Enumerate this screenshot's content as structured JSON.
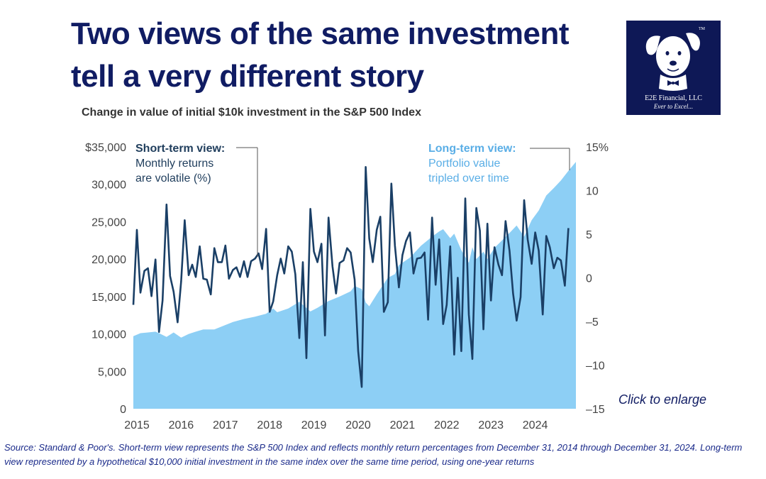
{
  "header": {
    "title_line1": "Two views of the same investment",
    "title_line2": "tell a very different story",
    "subtitle": "Change in value of initial $10k investment in the S&P 500 Index"
  },
  "logo": {
    "name": "E2E Financial, LLC",
    "tagline": "Ever to Excel...",
    "mark": "TM"
  },
  "annotations": {
    "short_term_title": "Short-term view:",
    "short_term_line1": "Monthly returns",
    "short_term_line2": "are volatile (%)",
    "long_term_title": "Long-term view:",
    "long_term_line1": "Portfolio value",
    "long_term_line2": "tripled over time"
  },
  "enlarge_link": "Click to enlarge",
  "source_note": "Source: Standard & Poor's. Short-term view represents the S&P 500 Index and reflects monthly return percentages from December 31, 2014 through December 31, 2024. Long-term view represented by a hypothetical $10,000 initial investment in the same index over the same time period, using one-year returns",
  "colors": {
    "title": "#101c63",
    "area_fill": "#8dcff5",
    "line": "#1a3f66",
    "short_term_label": "#1f3d5c",
    "long_term_label": "#5aaee6",
    "logo_bg": "#0e1856"
  },
  "chart_data": {
    "type": "area",
    "x_tick_labels": [
      "2015",
      "2016",
      "2017",
      "2018",
      "2019",
      "2020",
      "2021",
      "2022",
      "2023",
      "2024"
    ],
    "left_axis": {
      "ticks": [
        0,
        5000,
        10000,
        15000,
        20000,
        25000,
        30000,
        35000
      ],
      "tick_labels": [
        "0",
        "5,000",
        "10,000",
        "15,000",
        "20,000",
        "25,000",
        "30,000",
        "$35,000"
      ],
      "range": [
        0,
        35000
      ]
    },
    "right_axis": {
      "ticks": [
        15,
        10,
        5,
        0,
        -5,
        -10,
        -15
      ],
      "tick_labels": [
        "15%",
        "10",
        "5",
        "0",
        "–5",
        "–10",
        "–15"
      ],
      "range": [
        -15,
        15
      ]
    },
    "x_range": [
      2014.92,
      2024.92
    ],
    "series": [
      {
        "name": "Long-term view",
        "type": "area",
        "axis": "left",
        "points": [
          [
            2014.92,
            9700
          ],
          [
            2015.08,
            10100
          ],
          [
            2015.25,
            10200
          ],
          [
            2015.42,
            10300
          ],
          [
            2015.5,
            10100
          ],
          [
            2015.67,
            9600
          ],
          [
            2015.83,
            10200
          ],
          [
            2016.0,
            9500
          ],
          [
            2016.17,
            10000
          ],
          [
            2016.33,
            10300
          ],
          [
            2016.5,
            10600
          ],
          [
            2016.75,
            10600
          ],
          [
            2016.92,
            11000
          ],
          [
            2017.17,
            11600
          ],
          [
            2017.42,
            12000
          ],
          [
            2017.67,
            12300
          ],
          [
            2017.92,
            12700
          ],
          [
            2018.08,
            13400
          ],
          [
            2018.17,
            12900
          ],
          [
            2018.42,
            13400
          ],
          [
            2018.67,
            14300
          ],
          [
            2018.92,
            13000
          ],
          [
            2019.08,
            13500
          ],
          [
            2019.33,
            14400
          ],
          [
            2019.58,
            15000
          ],
          [
            2019.83,
            15700
          ],
          [
            2019.92,
            16400
          ],
          [
            2020.08,
            16000
          ],
          [
            2020.17,
            14200
          ],
          [
            2020.25,
            13700
          ],
          [
            2020.42,
            15300
          ],
          [
            2020.67,
            17500
          ],
          [
            2020.83,
            18000
          ],
          [
            2020.92,
            19200
          ],
          [
            2021.17,
            20200
          ],
          [
            2021.42,
            21800
          ],
          [
            2021.67,
            23000
          ],
          [
            2021.83,
            23700
          ],
          [
            2021.92,
            24000
          ],
          [
            2022.08,
            22800
          ],
          [
            2022.17,
            23400
          ],
          [
            2022.33,
            21200
          ],
          [
            2022.5,
            19500
          ],
          [
            2022.58,
            21600
          ],
          [
            2022.67,
            20000
          ],
          [
            2022.83,
            21000
          ],
          [
            2022.92,
            20000
          ],
          [
            2023.08,
            21500
          ],
          [
            2023.25,
            22500
          ],
          [
            2023.42,
            23500
          ],
          [
            2023.58,
            24500
          ],
          [
            2023.75,
            23000
          ],
          [
            2023.92,
            25200
          ],
          [
            2024.08,
            26500
          ],
          [
            2024.25,
            28500
          ],
          [
            2024.42,
            29500
          ],
          [
            2024.58,
            30500
          ],
          [
            2024.75,
            31800
          ],
          [
            2024.92,
            33000
          ]
        ]
      },
      {
        "name": "Short-term view",
        "type": "line",
        "axis": "right",
        "points": [
          [
            2014.92,
            -3.1
          ],
          [
            2015.0,
            5.5
          ],
          [
            2015.08,
            -1.7
          ],
          [
            2015.17,
            0.8
          ],
          [
            2015.25,
            1.1
          ],
          [
            2015.33,
            -2.1
          ],
          [
            2015.42,
            2.1
          ],
          [
            2015.5,
            -6.2
          ],
          [
            2015.58,
            -2.6
          ],
          [
            2015.67,
            8.4
          ],
          [
            2015.75,
            0.2
          ],
          [
            2015.83,
            -1.6
          ],
          [
            2015.92,
            -5.1
          ],
          [
            2016.0,
            -0.4
          ],
          [
            2016.08,
            6.6
          ],
          [
            2016.17,
            0.3
          ],
          [
            2016.25,
            1.5
          ],
          [
            2016.33,
            0.1
          ],
          [
            2016.42,
            3.6
          ],
          [
            2016.5,
            -0.1
          ],
          [
            2016.58,
            -0.2
          ],
          [
            2016.67,
            -1.9
          ],
          [
            2016.75,
            3.4
          ],
          [
            2016.83,
            1.8
          ],
          [
            2016.92,
            1.8
          ],
          [
            2017.0,
            3.7
          ],
          [
            2017.08,
            -0.1
          ],
          [
            2017.17,
            0.9
          ],
          [
            2017.25,
            1.2
          ],
          [
            2017.33,
            0.1
          ],
          [
            2017.42,
            1.9
          ],
          [
            2017.5,
            0.1
          ],
          [
            2017.58,
            1.9
          ],
          [
            2017.67,
            2.2
          ],
          [
            2017.75,
            2.8
          ],
          [
            2017.83,
            1.0
          ],
          [
            2017.92,
            5.6
          ],
          [
            2018.0,
            -3.9
          ],
          [
            2018.08,
            -2.7
          ],
          [
            2018.17,
            0.3
          ],
          [
            2018.25,
            2.2
          ],
          [
            2018.33,
            0.5
          ],
          [
            2018.42,
            3.6
          ],
          [
            2018.5,
            3.0
          ],
          [
            2018.58,
            0.4
          ],
          [
            2018.67,
            -6.9
          ],
          [
            2018.75,
            1.8
          ],
          [
            2018.83,
            -9.2
          ],
          [
            2018.92,
            7.9
          ],
          [
            2019.0,
            3.0
          ],
          [
            2019.08,
            1.8
          ],
          [
            2019.17,
            3.9
          ],
          [
            2019.25,
            -6.6
          ],
          [
            2019.33,
            6.9
          ],
          [
            2019.42,
            1.3
          ],
          [
            2019.5,
            -1.8
          ],
          [
            2019.58,
            1.7
          ],
          [
            2019.67,
            2.0
          ],
          [
            2019.75,
            3.4
          ],
          [
            2019.83,
            2.9
          ],
          [
            2019.92,
            -0.2
          ],
          [
            2020.0,
            -8.4
          ],
          [
            2020.08,
            -12.5
          ],
          [
            2020.17,
            12.7
          ],
          [
            2020.25,
            4.5
          ],
          [
            2020.33,
            1.8
          ],
          [
            2020.42,
            5.5
          ],
          [
            2020.5,
            7.0
          ],
          [
            2020.58,
            -3.9
          ],
          [
            2020.67,
            -2.8
          ],
          [
            2020.75,
            10.8
          ],
          [
            2020.83,
            3.7
          ],
          [
            2020.92,
            -1.1
          ],
          [
            2021.0,
            2.6
          ],
          [
            2021.08,
            4.2
          ],
          [
            2021.17,
            5.2
          ],
          [
            2021.25,
            0.5
          ],
          [
            2021.33,
            2.2
          ],
          [
            2021.42,
            2.3
          ],
          [
            2021.5,
            2.9
          ],
          [
            2021.58,
            -4.8
          ],
          [
            2021.67,
            6.9
          ],
          [
            2021.75,
            -0.8
          ],
          [
            2021.83,
            4.4
          ],
          [
            2021.92,
            -5.3
          ],
          [
            2022.0,
            -3.1
          ],
          [
            2022.08,
            3.6
          ],
          [
            2022.17,
            -8.8
          ],
          [
            2022.25,
            0.01
          ],
          [
            2022.33,
            -8.4
          ],
          [
            2022.42,
            9.1
          ],
          [
            2022.5,
            -4.2
          ],
          [
            2022.58,
            -9.3
          ],
          [
            2022.67,
            8.0
          ],
          [
            2022.75,
            5.4
          ],
          [
            2022.83,
            -5.9
          ],
          [
            2022.92,
            6.2
          ],
          [
            2023.0,
            -2.6
          ],
          [
            2023.08,
            3.5
          ],
          [
            2023.17,
            1.5
          ],
          [
            2023.25,
            0.3
          ],
          [
            2023.33,
            6.5
          ],
          [
            2023.42,
            3.1
          ],
          [
            2023.5,
            -1.8
          ],
          [
            2023.58,
            -4.9
          ],
          [
            2023.67,
            -2.2
          ],
          [
            2023.75,
            8.9
          ],
          [
            2023.83,
            4.4
          ],
          [
            2023.92,
            1.6
          ],
          [
            2024.0,
            5.2
          ],
          [
            2024.08,
            3.1
          ],
          [
            2024.17,
            -4.2
          ],
          [
            2024.25,
            4.8
          ],
          [
            2024.33,
            3.5
          ],
          [
            2024.42,
            1.1
          ],
          [
            2024.5,
            2.3
          ],
          [
            2024.58,
            2.0
          ],
          [
            2024.67,
            -0.9
          ],
          [
            2024.75,
            5.7
          ]
        ]
      }
    ],
    "grid": false,
    "legend": "annotations"
  }
}
